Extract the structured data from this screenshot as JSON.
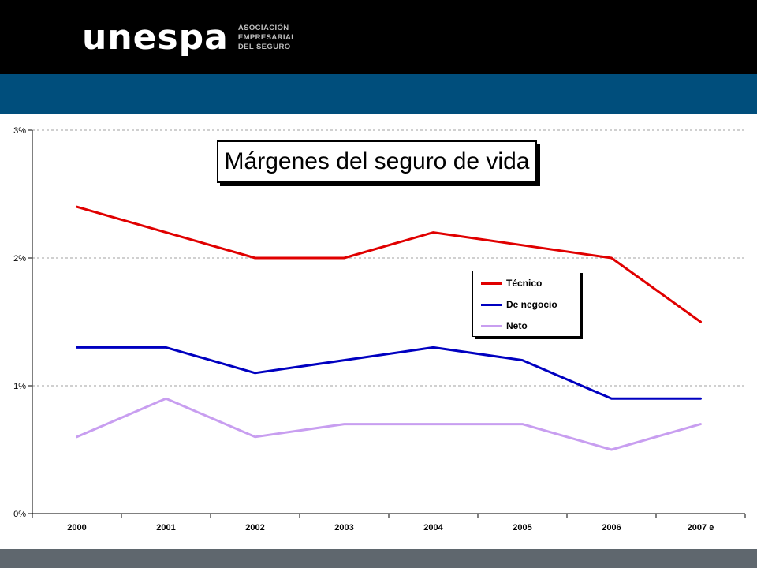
{
  "header": {
    "logo_word": "unespa",
    "logo_sub": [
      "ASOCIACIÓN",
      "EMPRESARIAL",
      "DEL SEGURO"
    ]
  },
  "colors": {
    "header_bg": "#000000",
    "band_bg": "#004e7c",
    "footer_bg": "#5f676e"
  },
  "chart_data": {
    "type": "line",
    "title": "Márgenes del seguro de vida",
    "xlabel": "",
    "ylabel": "",
    "categories": [
      "2000",
      "2001",
      "2002",
      "2003",
      "2004",
      "2005",
      "2006",
      "2007 e"
    ],
    "ylim": [
      0,
      3
    ],
    "yticks": [
      {
        "value": 0,
        "label": "0%"
      },
      {
        "value": 1,
        "label": "1%"
      },
      {
        "value": 2,
        "label": "2%"
      },
      {
        "value": 3,
        "label": "3%"
      }
    ],
    "grid": true,
    "legend_position": "right",
    "series": [
      {
        "name": "Técnico",
        "color": "#e00000",
        "values": [
          2.4,
          2.2,
          2.0,
          2.0,
          2.2,
          2.1,
          2.0,
          1.5
        ]
      },
      {
        "name": "De negocio",
        "color": "#0000c0",
        "values": [
          1.3,
          1.3,
          1.1,
          1.2,
          1.3,
          1.2,
          0.9,
          0.9
        ]
      },
      {
        "name": "Neto",
        "color": "#c89ef0",
        "values": [
          0.6,
          0.9,
          0.6,
          0.7,
          0.7,
          0.7,
          0.5,
          0.7
        ]
      }
    ]
  }
}
